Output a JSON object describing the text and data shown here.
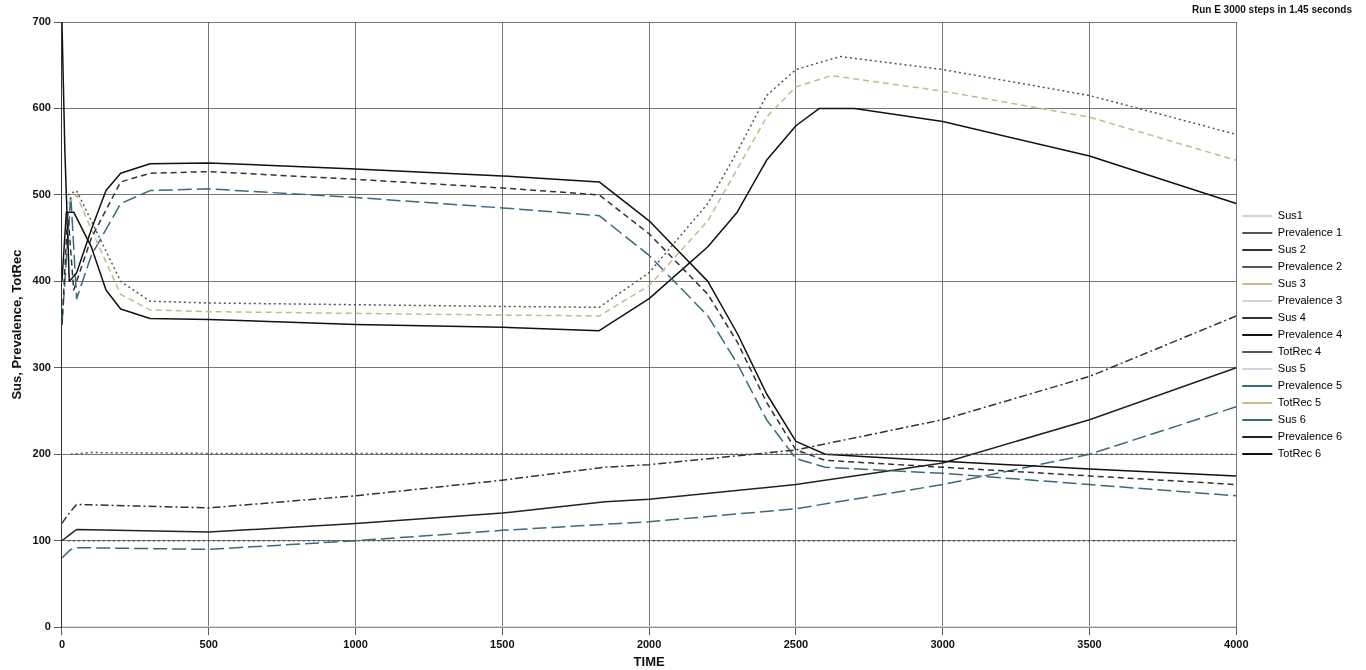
{
  "chart_data": {
    "type": "line",
    "title": "Run E 3000 steps in 1.45 seconds",
    "xlabel": "TIME",
    "ylabel": "Sus, Prevalence, TotRec",
    "xlim": [
      0,
      4000
    ],
    "xticks": [
      0,
      500,
      1000,
      1500,
      2000,
      2500,
      3000,
      3500,
      4000
    ],
    "ylim": [
      0,
      700
    ],
    "yticks": [
      0,
      100,
      200,
      300,
      400,
      500,
      600,
      700
    ],
    "grid": true,
    "legend": "right",
    "marker": "none",
    "series": [
      {
        "name": "Sus1",
        "color": "#d0d4e0",
        "line_style": "solid",
        "x": [
          0,
          4000
        ],
        "values": [
          0,
          0
        ]
      },
      {
        "name": "Prevalence 1",
        "color": "#555555",
        "line_style": "dotted",
        "x": [
          20,
          500,
          1000,
          2000,
          3000,
          4000
        ],
        "values": [
          100,
          100,
          100,
          100,
          100,
          100
        ]
      },
      {
        "name": "Sus 2",
        "color": "#333333",
        "line_style": "dashed",
        "x": [
          0,
          20,
          40,
          100,
          200,
          300,
          500,
          1000,
          1500,
          1830,
          2000,
          2200,
          2300,
          2400,
          2500,
          2600,
          3000,
          3500,
          4000
        ],
        "values": [
          350,
          480,
          390,
          450,
          515,
          525,
          527,
          518,
          508,
          500,
          455,
          385,
          330,
          260,
          205,
          193,
          185,
          175,
          165
        ]
      },
      {
        "name": "Prevalence 2",
        "color": "#555555",
        "line_style": "dotted",
        "x": [
          30,
          100,
          500,
          1000,
          2000,
          3000,
          4000
        ],
        "values": [
          200,
          202,
          201,
          201,
          200,
          200,
          200
        ]
      },
      {
        "name": "Sus 3",
        "color": "#c8b98a",
        "line_style": "dashed"
      },
      {
        "name": "Prevalence 3",
        "color": "#d0d4e0",
        "line_style": "solid",
        "x": [
          0,
          4000
        ],
        "values": [
          0,
          0
        ]
      },
      {
        "name": "Sus 4",
        "color": "#333333",
        "line_style": "dashdot",
        "x": [
          0,
          20,
          50,
          500,
          1000,
          1500,
          1850,
          2000,
          2500,
          3000,
          3500,
          4000
        ],
        "values": [
          120,
          130,
          142,
          138,
          152,
          170,
          185,
          188,
          205,
          240,
          290,
          360
        ]
      },
      {
        "name": "Prevalence 4",
        "color": "#111111",
        "line_style": "solid",
        "x": [
          0,
          10,
          25,
          50,
          100,
          150,
          200,
          300,
          500,
          1000,
          1500,
          1830,
          2000,
          2200,
          2300,
          2400,
          2500,
          2600,
          3000,
          3500,
          4000
        ],
        "values": [
          700,
          550,
          400,
          410,
          460,
          505,
          525,
          536,
          537,
          530,
          522,
          515,
          470,
          400,
          340,
          270,
          215,
          200,
          192,
          183,
          175
        ]
      },
      {
        "name": "TotRec 4",
        "color": "#555555",
        "line_style": "dotted",
        "x": [
          20,
          50,
          100,
          200,
          300,
          500,
          1000,
          1500,
          1830,
          2000,
          2200,
          2300,
          2400,
          2500,
          2650,
          3000,
          3500,
          4000
        ],
        "values": [
          500,
          505,
          470,
          400,
          377,
          375,
          373,
          371,
          370,
          410,
          490,
          550,
          615,
          645,
          660,
          645,
          615,
          570
        ]
      },
      {
        "name": "Sus 5",
        "color": "#d0d4e0",
        "line_style": "solid",
        "x": [
          0,
          4000
        ],
        "values": [
          0,
          0
        ]
      },
      {
        "name": "Prevalence 5",
        "color": "#3a6b7a",
        "line_style": "longdash",
        "x": [
          0,
          30,
          50,
          500,
          1000,
          1500,
          1900,
          2000,
          2500,
          3000,
          3500,
          4000
        ],
        "values": [
          80,
          90,
          92,
          90,
          100,
          112,
          120,
          122,
          137,
          165,
          200,
          255
        ]
      },
      {
        "name": "TotRec 5",
        "color": "#c8b98a",
        "line_style": "dashed",
        "x": [
          20,
          50,
          100,
          200,
          300,
          500,
          1000,
          1500,
          1830,
          2000,
          2200,
          2300,
          2400,
          2500,
          2620,
          3000,
          3500,
          4000
        ],
        "values": [
          490,
          500,
          460,
          385,
          367,
          365,
          363,
          361,
          360,
          395,
          470,
          530,
          590,
          625,
          638,
          620,
          590,
          540
        ]
      },
      {
        "name": "Sus 6",
        "color": "#3a6b7a",
        "line_style": "longdash",
        "x": [
          0,
          30,
          50,
          100,
          200,
          300,
          500,
          1000,
          1500,
          1830,
          2000,
          2200,
          2300,
          2400,
          2500,
          2600,
          3000,
          3500,
          4000
        ],
        "values": [
          350,
          500,
          380,
          430,
          490,
          505,
          507,
          497,
          485,
          476,
          430,
          360,
          305,
          240,
          195,
          185,
          178,
          165,
          152
        ]
      },
      {
        "name": "Prevalence 6",
        "color": "#222222",
        "line_style": "solid",
        "x": [
          0,
          30,
          50,
          500,
          1000,
          1500,
          1850,
          2000,
          2500,
          3000,
          3500,
          4000
        ],
        "values": [
          100,
          108,
          113,
          110,
          120,
          132,
          145,
          148,
          165,
          190,
          240,
          300
        ]
      },
      {
        "name": "TotRec 6",
        "color": "#111111",
        "line_style": "solid",
        "x": [
          0,
          15,
          40,
          100,
          150,
          200,
          300,
          500,
          1000,
          1500,
          1830,
          2000,
          2200,
          2300,
          2400,
          2500,
          2580,
          2700,
          3000,
          3500,
          4000
        ],
        "values": [
          400,
          480,
          480,
          440,
          390,
          368,
          357,
          356,
          350,
          347,
          343,
          380,
          440,
          480,
          540,
          580,
          600,
          600,
          585,
          545,
          490
        ]
      }
    ]
  }
}
